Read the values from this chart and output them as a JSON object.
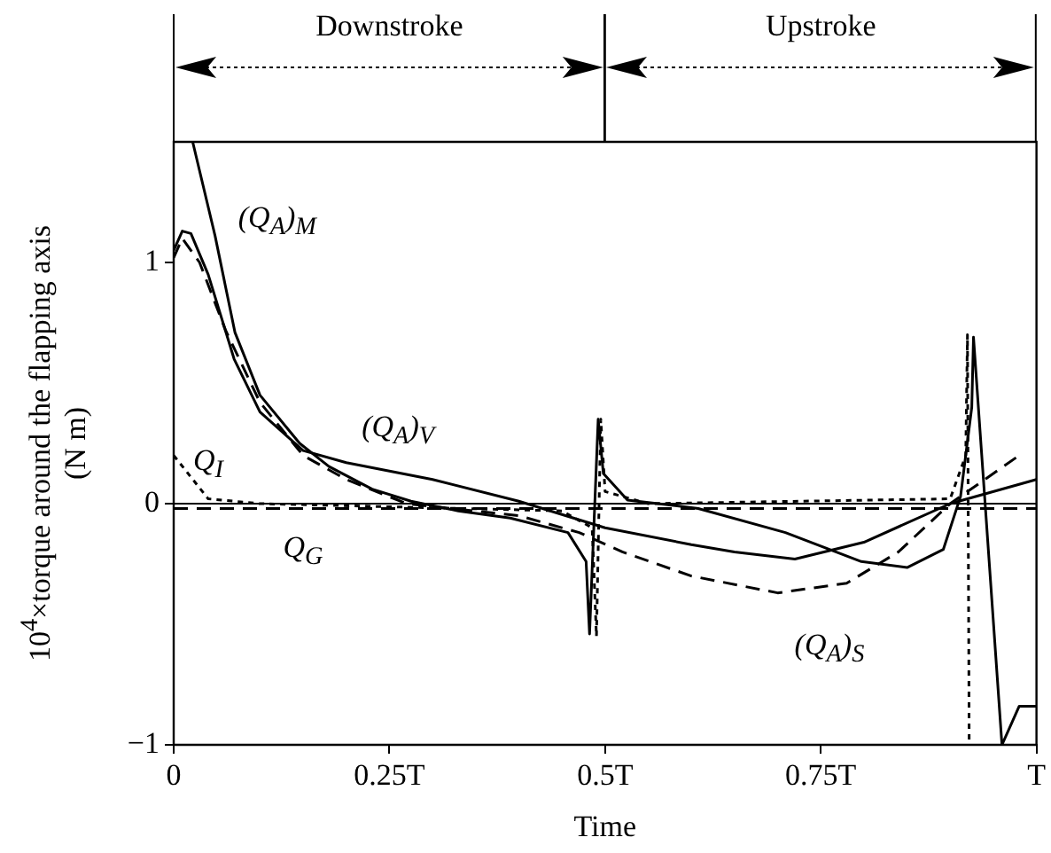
{
  "chart_data": {
    "type": "line",
    "xlabel": "Time",
    "ylabel": "10$^{4}$×torque around the flapping axis\n(N m)",
    "xlim": [
      0,
      1
    ],
    "ylim": [
      -1,
      1.5
    ],
    "xticks": [
      0,
      {
        "value": 0.25,
        "label": "0.25T"
      },
      {
        "value": 0.5,
        "label": "0.5T"
      },
      {
        "value": 0.75,
        "label": "0.75T"
      },
      {
        "value": 1,
        "label": "T"
      }
    ],
    "yticks": [
      {
        "value": -1,
        "label": "−1"
      },
      0,
      1
    ],
    "grid": false,
    "legend": false,
    "marker": "none",
    "annotations": [
      "Downstroke",
      "Upstroke"
    ],
    "ref_lines": [
      {
        "axis": "y",
        "value": 0
      }
    ],
    "series": [
      {
        "name": "(Q$_{A}$)$_{M}$",
        "color": "#000000",
        "line_style": "solid",
        "x": [
          0.022,
          0.048,
          0.071,
          0.1,
          0.146,
          0.18,
          0.23,
          0.275,
          0.33,
          0.39,
          0.457,
          0.478,
          0.482,
          0.492,
          0.498,
          0.526,
          0.608,
          0.709,
          0.797,
          0.85,
          0.892,
          0.912,
          0.925,
          0.927,
          0.96,
          0.98,
          1
        ],
        "values": [
          1.5,
          1.11,
          0.71,
          0.45,
          0.25,
          0.154,
          0.06,
          0.01,
          -0.03,
          -0.06,
          -0.12,
          -0.24,
          -0.54,
          0.35,
          0.125,
          0.015,
          -0.02,
          -0.12,
          -0.24,
          -0.265,
          -0.19,
          0.03,
          0.4,
          0.69,
          -1,
          -0.84,
          -0.84
        ]
      },
      {
        "name": "(Q$_{A}$)$_{V}$",
        "color": "#000000",
        "line_style": "solid",
        "x": [
          0,
          0.01,
          0.02,
          0.04,
          0.07,
          0.1,
          0.15,
          0.2,
          0.3,
          0.4,
          0.5,
          0.6,
          0.65,
          0.72,
          0.8,
          0.9,
          1
        ],
        "values": [
          1.05,
          1.13,
          1.12,
          0.95,
          0.6,
          0.38,
          0.22,
          0.17,
          0.1,
          0.01,
          -0.1,
          -0.17,
          -0.2,
          -0.23,
          -0.16,
          0,
          0.1
        ]
      },
      {
        "name": "(Q$_{A}$)$_{S}$",
        "color": "#000000",
        "line_style": "dashed",
        "x": [
          0,
          0.01,
          0.03,
          0.06,
          0.1,
          0.15,
          0.2,
          0.27,
          0.4,
          0.47,
          0.52,
          0.6,
          0.7,
          0.78,
          0.84,
          0.9,
          0.98
        ],
        "values": [
          1.02,
          1.1,
          1.0,
          0.72,
          0.42,
          0.2,
          0.1,
          0,
          -0.05,
          -0.12,
          -0.2,
          -0.3,
          -0.37,
          -0.33,
          -0.2,
          0,
          0.2
        ]
      },
      {
        "name": "Q$_{I}$",
        "color": "#000000",
        "line_style": "dotted",
        "x": [
          0,
          0.04,
          0.1,
          0.45,
          0.485,
          0.49,
          0.495,
          0.5,
          0.55,
          0.9,
          0.918,
          0.92,
          0.922
        ],
        "values": [
          0.2,
          0.02,
          0,
          -0.03,
          -0.1,
          -0.55,
          0.35,
          0.05,
          0,
          0.02,
          0.2,
          0.7,
          -1
        ]
      },
      {
        "name": "Q$_{G}$",
        "color": "#000000",
        "line_style": "dashed",
        "x": [
          0,
          1
        ],
        "values": [
          -0.02,
          -0.02
        ]
      }
    ]
  }
}
